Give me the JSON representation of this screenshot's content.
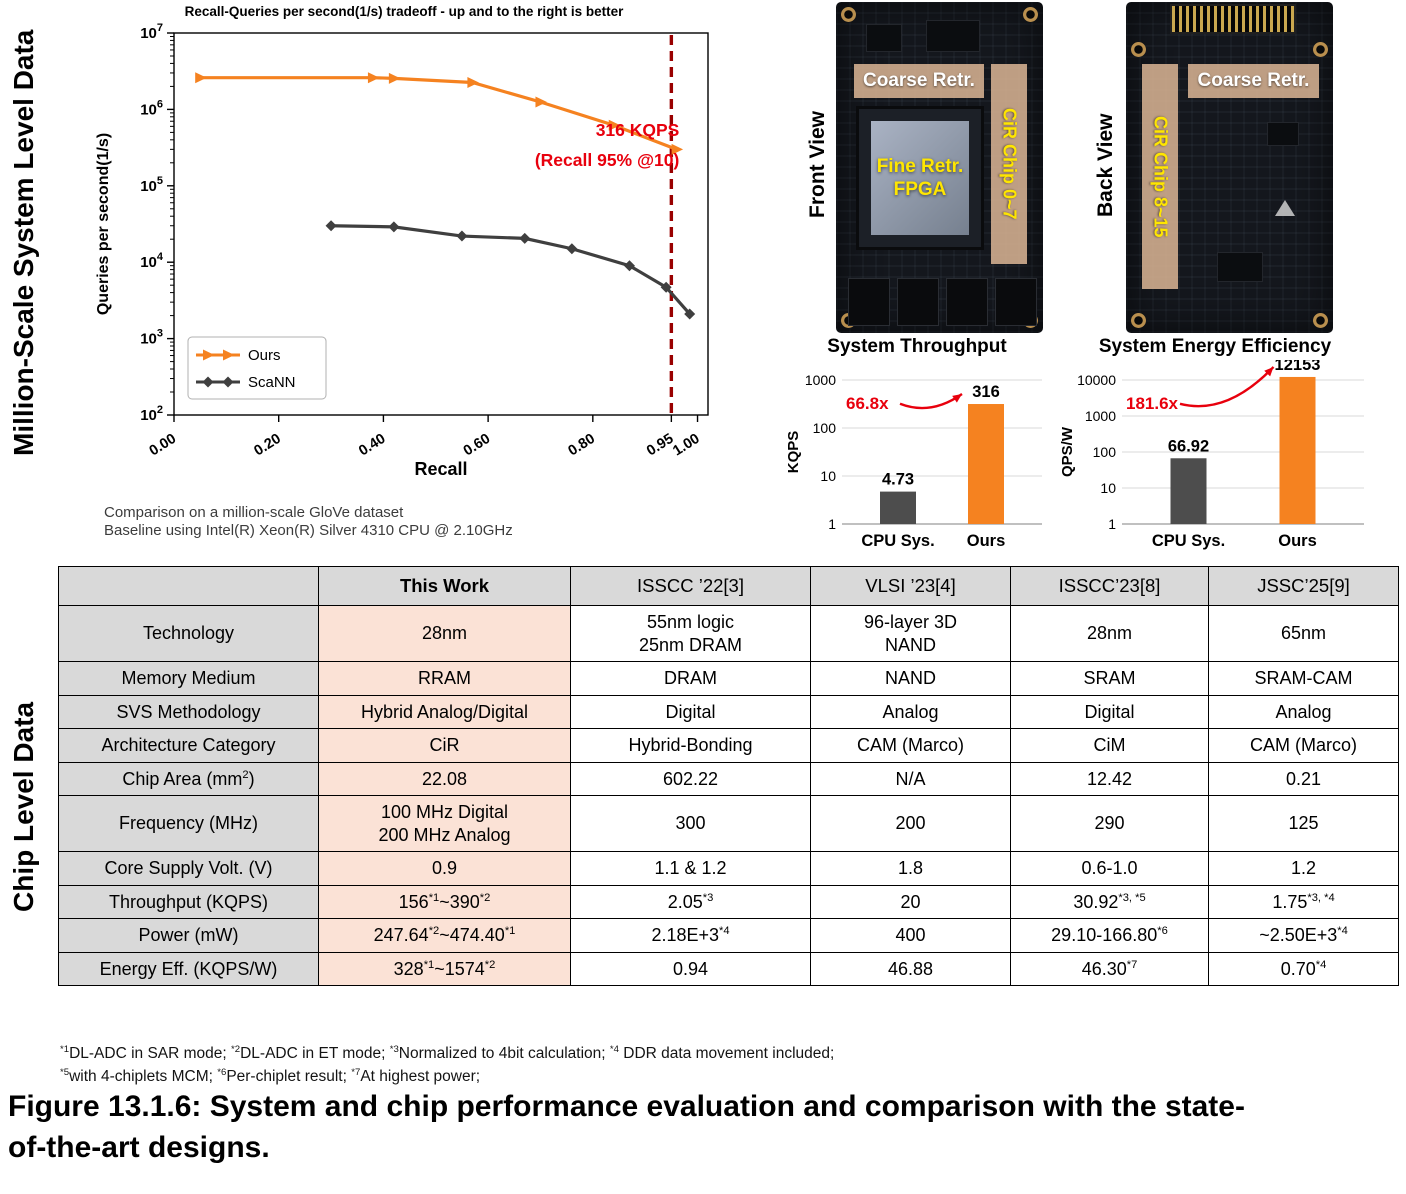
{
  "page": {
    "section1_label": "Million-Scale System Level Data",
    "section2_label": "Chip Level Data",
    "caption_line1": "Figure 13.1.6: System and chip performance evaluation and comparison with the state-",
    "caption_line2": "of-the-art designs."
  },
  "colors": {
    "accent_orange": "#f58220",
    "dark_gray_bar": "#4d4d4d",
    "annotation_red": "#e8000d",
    "vline_dark_red": "#990000",
    "table_header_gray": "#d9d9d9",
    "this_work_peach": "#fbe2d6"
  },
  "chart_data": [
    {
      "type": "line",
      "title": "Recall-Queries per second(1/s) tradeoff - up and to the right is better",
      "xlabel": "Recall",
      "ylabel": "Queries per second(1/s)",
      "xlim": [
        0,
        1.02
      ],
      "ylog": true,
      "ylim": [
        100,
        10000000
      ],
      "x_ticks": [
        0.0,
        0.2,
        0.4,
        0.6,
        0.8,
        0.95,
        1.0
      ],
      "x_tick_labels": [
        "0.00",
        "0.20",
        "0.40",
        "0.60",
        "0.80",
        "0.95",
        "1.00"
      ],
      "grid": false,
      "legend_position": "lower left",
      "series": [
        {
          "name": "Ours",
          "color": "#f58220",
          "marker": "arrow",
          "points": [
            [
              0.05,
              2600000
            ],
            [
              0.38,
              2600000
            ],
            [
              0.42,
              2550000
            ],
            [
              0.57,
              2250000
            ],
            [
              0.7,
              1250000
            ],
            [
              0.84,
              620000
            ],
            [
              0.96,
              300000
            ]
          ]
        },
        {
          "name": "ScaNN",
          "color": "#3f3f3f",
          "marker": "diamond",
          "points": [
            [
              0.3,
              30000
            ],
            [
              0.42,
              29000
            ],
            [
              0.55,
              22000
            ],
            [
              0.67,
              20500
            ],
            [
              0.76,
              15000
            ],
            [
              0.87,
              9000
            ],
            [
              0.94,
              4700
            ],
            [
              0.985,
              2100
            ]
          ]
        }
      ],
      "vline": {
        "x": 0.95,
        "color": "#990000"
      },
      "annotation": {
        "line1": "316 KQPS",
        "line2": "(Recall 95% @10)",
        "color": "#e8000d"
      },
      "subcaption_line1": "Comparison on a million-scale GloVe dataset",
      "subcaption_line2": "Baseline using Intel(R) Xeon(R) Silver 4310 CPU @ 2.10GHz"
    },
    {
      "type": "bar",
      "title": "System Throughput",
      "ylabel": "KQPS",
      "ylog": true,
      "ylim": [
        1,
        1000
      ],
      "yticks": [
        1,
        10,
        100,
        1000
      ],
      "categories": [
        "CPU Sys.",
        "Ours"
      ],
      "values": [
        4.73,
        316
      ],
      "value_labels": [
        "4.73",
        "316"
      ],
      "bar_colors": [
        "#4d4d4d",
        "#f58220"
      ],
      "multiplier": "66.8x",
      "multiplier_color": "#e8000d"
    },
    {
      "type": "bar",
      "title": "System Energy Efficiency",
      "ylabel": "QPS/W",
      "ylog": true,
      "ylim": [
        1,
        10000
      ],
      "yticks": [
        1,
        10,
        100,
        1000,
        10000
      ],
      "categories": [
        "CPU Sys.",
        "Ours"
      ],
      "values": [
        66.92,
        12153
      ],
      "value_labels": [
        "66.92",
        "12153"
      ],
      "bar_colors": [
        "#4d4d4d",
        "#f58220"
      ],
      "multiplier": "181.6x",
      "multiplier_color": "#e8000d"
    }
  ],
  "boards": {
    "front": {
      "view_label": "Front View",
      "coarse_label": "Coarse Retr.",
      "fpga_label_line1": "Fine Retr.",
      "fpga_label_line2": "FPGA",
      "chip_label": "CiR Chip 0~7"
    },
    "back": {
      "view_label": "Back View",
      "coarse_label": "Coarse Retr.",
      "chip_label": "CiR Chip 8~15"
    }
  },
  "table": {
    "headers": [
      "",
      "This Work",
      "ISSCC ’22[3]",
      "VLSI ’23[4]",
      "ISSCC’23[8]",
      "JSSC’25[9]"
    ],
    "rows": [
      {
        "label": "Technology",
        "cells": [
          "28nm",
          "55nm logic\n25nm DRAM",
          "96-layer 3D\nNAND",
          "28nm",
          "65nm"
        ]
      },
      {
        "label": "Memory Medium",
        "cells": [
          "RRAM",
          "DRAM",
          "NAND",
          "SRAM",
          "SRAM-CAM"
        ]
      },
      {
        "label": "SVS Methodology",
        "cells": [
          "Hybrid Analog/Digital",
          "Digital",
          "Analog",
          "Digital",
          "Analog"
        ]
      },
      {
        "label": "Architecture Category",
        "cells": [
          "CiR",
          "Hybrid-Bonding",
          "CAM (Marco)",
          "CiM",
          "CAM (Marco)"
        ]
      },
      {
        "label": "Chip Area (mm^{2})",
        "cells": [
          "22.08",
          "602.22",
          "N/A",
          "12.42",
          "0.21"
        ]
      },
      {
        "label": "Frequency (MHz)",
        "cells": [
          "100 MHz Digital\n200 MHz Analog",
          "300",
          "200",
          "290",
          "125"
        ]
      },
      {
        "label": "Core Supply Volt. (V)",
        "cells": [
          "0.9",
          "1.1 & 1.2",
          "1.8",
          "0.6-1.0",
          "1.2"
        ]
      },
      {
        "label": "Throughput (KQPS)",
        "cells": [
          "156^{*1}~390^{*2}",
          "2.05^{*3}",
          "20",
          "30.92^{*3, *5}",
          "1.75^{*3, *4}"
        ]
      },
      {
        "label": "Power (mW)",
        "cells": [
          "247.64^{*2}~474.40^{*1}",
          "2.18E+3^{*4}",
          "400",
          "29.10-166.80^{*6}",
          "~2.50E+3^{*4}"
        ]
      },
      {
        "label": "Energy Eff. (KQPS/W)",
        "cells": [
          "328^{*1}~1574^{*2}",
          "0.94",
          "46.88",
          "46.30^{*7}",
          "0.70^{*4}"
        ]
      }
    ]
  },
  "footnotes": {
    "line1": "^{*1}DL-ADC in SAR mode; ^{*2}DL-ADC in ET mode; ^{*3}Normalized to 4bit calculation; ^{*4} DDR data movement included;",
    "line2": "^{*5}with 4-chiplets MCM; ^{*6}Per-chiplet result; ^{*7}At highest power;"
  }
}
